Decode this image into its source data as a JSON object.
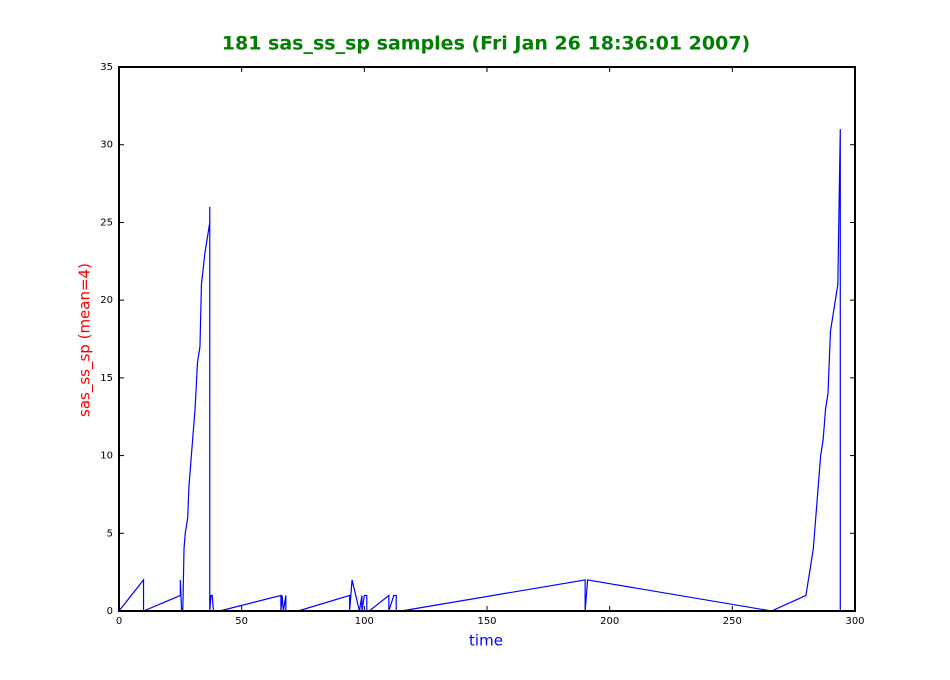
{
  "chart_data": {
    "type": "line",
    "title": "181 sas_ss_sp samples (Fri Jan 26 18:36:01 2007)",
    "xlabel": "time",
    "ylabel": "sas_ss_sp (mean=4)",
    "xlim": [
      0,
      300
    ],
    "ylim": [
      0,
      35
    ],
    "xticks": [
      0,
      50,
      100,
      150,
      200,
      250,
      300
    ],
    "yticks": [
      0,
      5,
      10,
      15,
      20,
      25,
      30,
      35
    ],
    "grid": false,
    "series": [
      {
        "name": "sas_ss_sp",
        "color": "#0000ff",
        "x": [
          0,
          10,
          10,
          10,
          25,
          25,
          25.5,
          26,
          26.5,
          27,
          28,
          28.5,
          29,
          29.5,
          30,
          30.5,
          31,
          32,
          33,
          33.3,
          33.6,
          35,
          36,
          37,
          37,
          37,
          37.5,
          38,
          38.5,
          41,
          66,
          66,
          66.5,
          67,
          68,
          68,
          73,
          94,
          94,
          95,
          98,
          99,
          99,
          100,
          101,
          101,
          102,
          110,
          110,
          112,
          113,
          113,
          115,
          190,
          190,
          191,
          266,
          280,
          281,
          282,
          283,
          284,
          285,
          286,
          287,
          288,
          289,
          290,
          291,
          292,
          293,
          294,
          294
        ],
        "values": [
          0,
          2,
          1,
          0,
          1,
          2,
          0,
          0,
          4,
          5,
          6,
          8,
          9,
          10,
          11,
          12,
          13,
          16,
          17,
          19,
          21,
          23,
          24,
          25,
          26,
          0,
          1,
          1,
          0,
          0,
          1,
          0,
          1,
          0,
          1,
          0,
          0,
          1,
          0,
          2,
          0,
          1,
          0,
          1,
          1,
          0,
          0,
          1,
          0,
          1,
          1,
          0,
          0,
          2,
          0,
          2,
          0,
          1,
          2,
          3,
          4,
          6,
          8,
          10,
          11,
          13,
          14,
          18,
          19,
          20,
          21,
          31,
          0
        ]
      }
    ]
  }
}
